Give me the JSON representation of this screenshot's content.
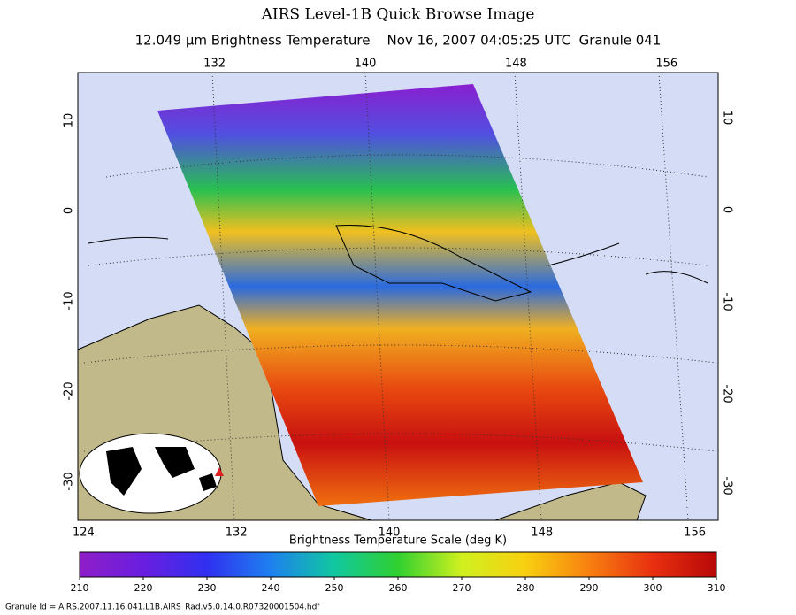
{
  "title": "AIRS Level-1B Quick Browse Image",
  "subtitle": "12.049 μm Brightness Temperature    Nov 16, 2007 04:05:25 UTC  Granule 041",
  "map": {
    "top_lon_labels": [
      132,
      140,
      148,
      156
    ],
    "bottom_lon_labels": [
      124,
      132,
      140,
      148,
      156
    ],
    "left_lat_labels": [
      10,
      0,
      -10,
      -20,
      -30
    ],
    "right_lat_labels": [
      10,
      0,
      -10,
      -20,
      -30
    ]
  },
  "colorbar": {
    "title": "Brightness Temperature Scale (deg K)",
    "range": [
      210,
      310
    ],
    "ticks": [
      210,
      220,
      230,
      240,
      250,
      260,
      270,
      280,
      290,
      300,
      310
    ]
  },
  "footer": "Granule Id = AIRS.2007.11.16.041.L1B.AIRS_Rad.v5.0.14.0.R07320001504.hdf"
}
